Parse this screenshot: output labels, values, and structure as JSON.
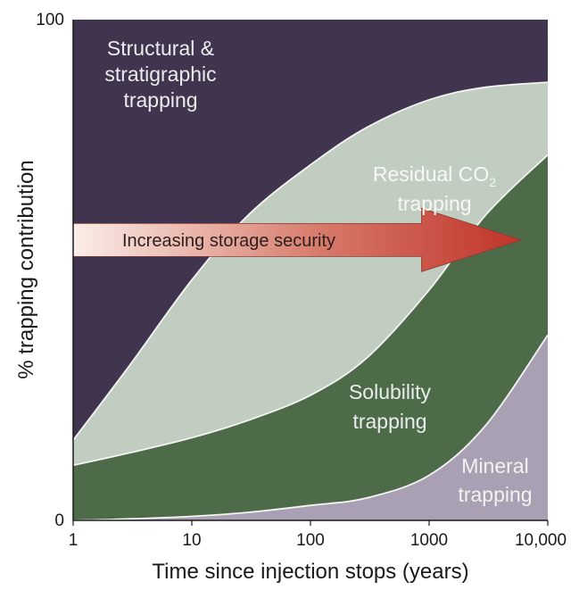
{
  "chart_data": {
    "type": "area",
    "stacked": true,
    "xscale": "log",
    "xlabel": "Time since injection stops (years)",
    "ylabel": "% trapping contribution",
    "xlim": [
      1,
      10000
    ],
    "ylim": [
      0,
      100
    ],
    "x_ticks": [
      {
        "value": 1,
        "label": "1"
      },
      {
        "value": 10,
        "label": "10"
      },
      {
        "value": 100,
        "label": "100"
      },
      {
        "value": 1000,
        "label": "1000"
      },
      {
        "value": 10000,
        "label": "10,000"
      }
    ],
    "y_ticks": [
      {
        "value": 0,
        "label": "0"
      },
      {
        "value": 100,
        "label": "100"
      }
    ],
    "x": [
      1,
      3,
      10,
      30,
      100,
      300,
      1000,
      3000,
      10000
    ],
    "boundaries": [
      {
        "id": "mineral_top",
        "y": [
          0,
          0.3,
          0.8,
          1.6,
          3,
          4.5,
          9,
          19,
          37
        ]
      },
      {
        "id": "solubility_top",
        "y": [
          11,
          13.5,
          16.5,
          20,
          25,
          32.5,
          46,
          61,
          73
        ]
      },
      {
        "id": "residual_top",
        "y": [
          16,
          31,
          48,
          61,
          71,
          78.5,
          84,
          86.5,
          87.5
        ]
      }
    ],
    "regions": [
      {
        "name": "Mineral trapping",
        "lines": [
          "Mineral",
          "trapping"
        ],
        "color": "#a9a0b4",
        "text_color": "#f2f2f2",
        "from": null,
        "to": "mineral_top"
      },
      {
        "name": "Solubility trapping",
        "lines": [
          "Solubility",
          "trapping"
        ],
        "color": "#4e6b49",
        "text_color": "#e9ecec",
        "from": "mineral_top",
        "to": "solubility_top"
      },
      {
        "name": "Residual CO2 trapping",
        "lines": [
          "Residual CO",
          "trapping"
        ],
        "subscript": "2",
        "color": "#c2cdc2",
        "text_color": "#f7f7f7",
        "from": "solubility_top",
        "to": "residual_top"
      },
      {
        "name": "Structural & stratigraphic trapping",
        "lines": [
          "Structural &",
          "stratigraphic",
          "trapping"
        ],
        "color": "#41344f",
        "text_color": "#ececec",
        "from": "residual_top",
        "to": null
      }
    ],
    "annotations": [
      {
        "type": "arrow",
        "label": "Increasing storage security",
        "x_start": 1,
        "x_end": 6000,
        "y_center": 56,
        "direction": "right",
        "gradient": [
          "#fbeee9",
          "#c0332a"
        ]
      }
    ],
    "grid": false,
    "legend": "none"
  }
}
